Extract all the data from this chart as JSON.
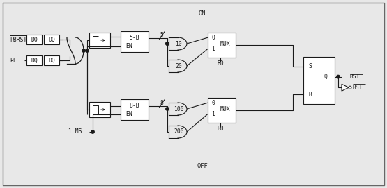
{
  "bg_color": "#e8e8e8",
  "border_color": "#666666",
  "line_color": "#1a1a1a",
  "box_color": "#ffffff",
  "labels": {
    "pbrst": "PBRST",
    "pf": "PF",
    "on": "ON",
    "off": "OFF",
    "ms": "1 MS",
    "rst": "RST",
    "rst_bar": "RST",
    "5b": "5-B",
    "8b": "8-B",
    "en": "EN",
    "mux": "MUX",
    "rd": "RD",
    "s": "S",
    "r": "R",
    "q": "Q",
    "n10": "10",
    "n20": "20",
    "n100": "100",
    "n200": "200",
    "n5": "5",
    "n8": "8",
    "dq": "DQ",
    "zero": "0",
    "one": "1"
  }
}
